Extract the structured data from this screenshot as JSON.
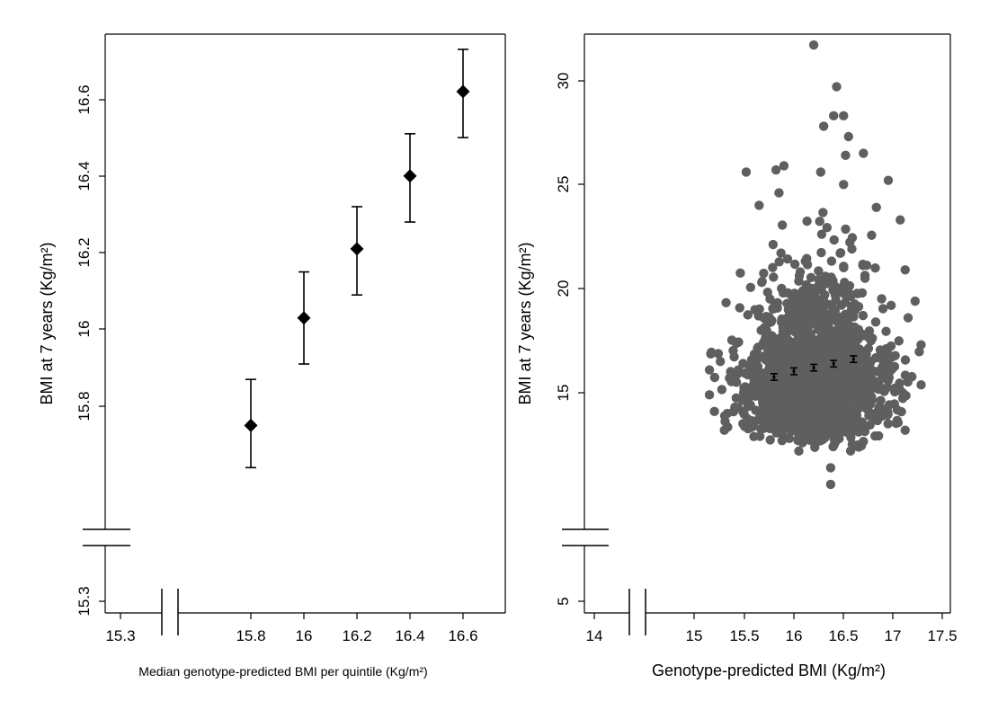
{
  "colors": {
    "axis": "#000000",
    "scatter_points": "#5f5f5f",
    "markers": "#000000",
    "background": "#ffffff"
  },
  "chart_data": [
    {
      "type": "scatter",
      "title": "",
      "xlabel": "Median genotype-predicted BMI per quintile (Kg/m²)",
      "ylabel": "BMI at 7 years (Kg/m²)",
      "x_ticks": [
        "15.3",
        "15.8",
        "16",
        "16.2",
        "16.4",
        "16.6"
      ],
      "y_ticks": [
        "15.3",
        "15.8",
        "16",
        "16.2",
        "16.4",
        "16.6"
      ],
      "xlim": [
        15.2,
        16.65
      ],
      "ylim": [
        15.27,
        16.76
      ],
      "axis_break": "both axes broken near origin",
      "marker": "diamond",
      "grid": false,
      "series": [
        {
          "x": [
            15.8,
            16.0,
            16.2,
            16.4,
            16.6
          ],
          "y": [
            15.75,
            16.03,
            16.21,
            16.4,
            16.62
          ],
          "ci_low": [
            15.64,
            15.91,
            16.09,
            16.28,
            16.5
          ],
          "ci_high": [
            15.87,
            16.15,
            16.32,
            16.51,
            16.73
          ]
        }
      ]
    },
    {
      "type": "scatter",
      "title": "",
      "xlabel": "Genotype-predicted BMI (Kg/m²)",
      "ylabel": "BMI at 7 years (Kg/m²)",
      "x_ticks": [
        "14",
        "15",
        "15.5",
        "16",
        "16.5",
        "17",
        "17.5"
      ],
      "y_ticks": [
        "5",
        "15",
        "20",
        "25",
        "30"
      ],
      "xlim": [
        13.8,
        17.65
      ],
      "ylim": [
        4.5,
        32.2
      ],
      "axis_break": "both axes broken near origin",
      "grid": false,
      "scatter_cloud": {
        "n_points_approx": 2000,
        "x_center": 16.2,
        "x_range": [
          15.15,
          17.3
        ],
        "y_center": 16.2,
        "y_range": [
          10.6,
          31.7
        ]
      },
      "series": [
        {
          "x": [
            15.8,
            16.0,
            16.2,
            16.4,
            16.6
          ],
          "y": [
            15.75,
            16.03,
            16.21,
            16.4,
            16.62
          ],
          "ci_low": [
            15.64,
            15.91,
            16.09,
            16.28,
            16.5
          ],
          "ci_high": [
            15.87,
            16.15,
            16.32,
            16.51,
            16.73
          ]
        }
      ]
    }
  ]
}
